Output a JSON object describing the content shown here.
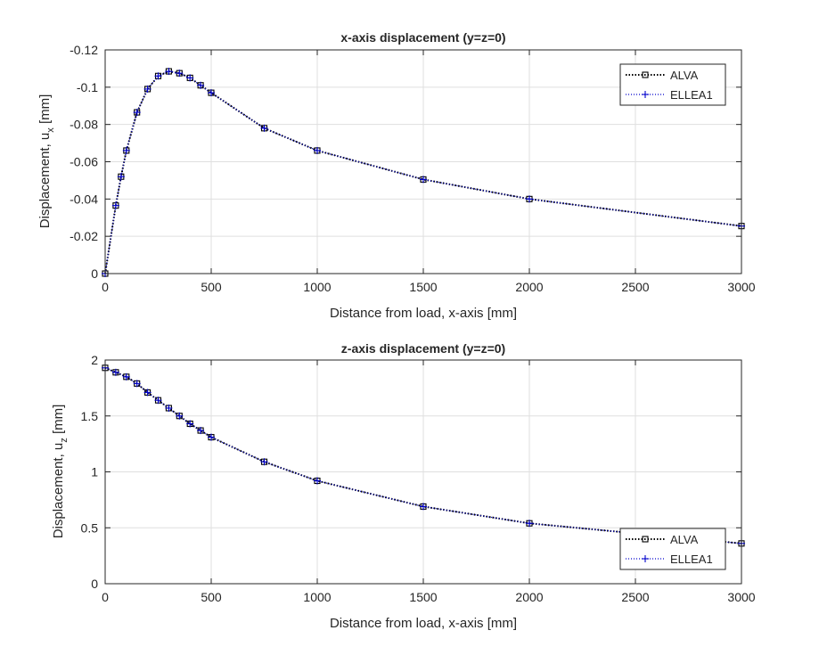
{
  "chart_data": [
    {
      "type": "line",
      "title": "x-axis displacement (y=z=0)",
      "xlabel": "Distance from load, x-axis [mm]",
      "ylabel": "Displacement, u",
      "ylabel_sub": "x",
      "ylabel_unit": " [mm]",
      "xlim": [
        0,
        3000
      ],
      "ylim": [
        0,
        -0.12
      ],
      "y_reversed": true,
      "xticks": [
        0,
        500,
        1000,
        1500,
        2000,
        2500,
        3000
      ],
      "yticks": [
        0,
        -0.02,
        -0.04,
        -0.06,
        -0.08,
        -0.1,
        -0.12
      ],
      "ytick_labels": [
        "0",
        "-0.02",
        "-0.04",
        "-0.06",
        "-0.08",
        "-0.1",
        "-0.12"
      ],
      "grid": true,
      "legend_position": "top-right",
      "x": [
        0,
        50,
        75,
        100,
        150,
        200,
        250,
        300,
        350,
        400,
        450,
        500,
        750,
        1000,
        1500,
        2000,
        3000
      ],
      "series": [
        {
          "name": "ALVA",
          "color": "#000000",
          "marker": "square",
          "line_style": "dotted",
          "values": [
            0,
            -0.0365,
            -0.052,
            -0.066,
            -0.0865,
            -0.099,
            -0.106,
            -0.1085,
            -0.1075,
            -0.105,
            -0.101,
            -0.097,
            -0.078,
            -0.066,
            -0.0505,
            -0.04,
            -0.0255
          ]
        },
        {
          "name": "ELLEA1",
          "color": "#0000cc",
          "marker": "plus",
          "line_style": "dotted",
          "values": [
            0,
            -0.0365,
            -0.052,
            -0.066,
            -0.0865,
            -0.099,
            -0.106,
            -0.1085,
            -0.1075,
            -0.105,
            -0.101,
            -0.097,
            -0.078,
            -0.066,
            -0.0505,
            -0.04,
            -0.0255
          ]
        }
      ]
    },
    {
      "type": "line",
      "title": "z-axis displacement  (y=z=0)",
      "xlabel": "Distance from load, x-axis [mm]",
      "ylabel": "Displacement, u",
      "ylabel_sub": "z",
      "ylabel_unit": " [mm]",
      "xlim": [
        0,
        3000
      ],
      "ylim": [
        0,
        2
      ],
      "y_reversed": true,
      "xticks": [
        0,
        500,
        1000,
        1500,
        2000,
        2500,
        3000
      ],
      "yticks": [
        0,
        0.5,
        1,
        1.5,
        2
      ],
      "ytick_labels": [
        "0",
        "0.5",
        "1",
        "1.5",
        "2"
      ],
      "grid": true,
      "legend_position": "bottom-right",
      "x": [
        0,
        50,
        100,
        150,
        200,
        250,
        300,
        350,
        400,
        450,
        500,
        750,
        1000,
        1500,
        2000,
        3000
      ],
      "series": [
        {
          "name": "ALVA",
          "color": "#000000",
          "marker": "square",
          "line_style": "dotted",
          "values": [
            1.93,
            1.89,
            1.85,
            1.79,
            1.71,
            1.64,
            1.57,
            1.5,
            1.43,
            1.37,
            1.31,
            1.09,
            0.92,
            0.69,
            0.54,
            0.36
          ]
        },
        {
          "name": "ELLEA1",
          "color": "#0000cc",
          "marker": "plus",
          "line_style": "dotted",
          "values": [
            1.93,
            1.89,
            1.85,
            1.79,
            1.71,
            1.64,
            1.57,
            1.5,
            1.43,
            1.37,
            1.31,
            1.09,
            0.92,
            0.69,
            0.54,
            0.36
          ]
        }
      ]
    }
  ]
}
